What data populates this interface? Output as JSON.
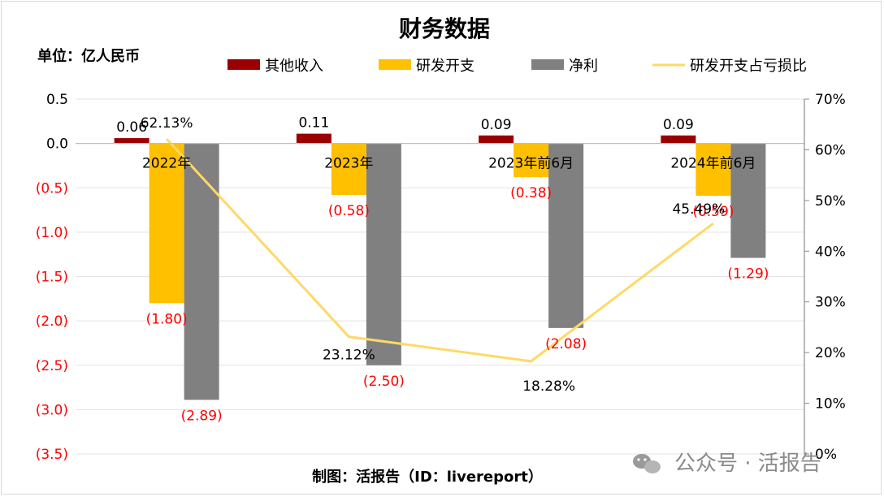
{
  "chart_data": {
    "type": "bar",
    "title": "财务数据",
    "unit_label": "单位：亿人民币",
    "categories": [
      "2022年",
      "2023年",
      "2023年前6月",
      "2024年前6月"
    ],
    "series": [
      {
        "name": "其他收入",
        "kind": "bar",
        "axis": "left",
        "color": "#9b0000",
        "values": [
          0.06,
          0.11,
          0.09,
          0.09
        ],
        "labels": [
          "0.06",
          "0.11",
          "0.09",
          "0.09"
        ]
      },
      {
        "name": "研发开支",
        "kind": "bar",
        "axis": "left",
        "color": "#ffc000",
        "values": [
          -1.8,
          -0.58,
          -0.38,
          -0.59
        ],
        "labels": [
          "(1.80)",
          "(0.58)",
          "(0.38)",
          "(0.59)"
        ]
      },
      {
        "name": "净利",
        "kind": "bar",
        "axis": "left",
        "color": "#808080",
        "values": [
          -2.89,
          -2.5,
          -2.08,
          -1.29
        ],
        "labels": [
          "(2.89)",
          "(2.50)",
          "(2.08)",
          "(1.29)"
        ]
      },
      {
        "name": "研发开支占亏损比",
        "kind": "line",
        "axis": "right",
        "color": "#ffd966",
        "values": [
          62.13,
          23.12,
          18.28,
          45.49
        ],
        "labels": [
          "62.13%",
          "23.12%",
          "18.28%",
          "45.49%"
        ]
      }
    ],
    "y_left": {
      "range": [
        -3.5,
        0.5
      ],
      "ticks": [
        "0.5",
        "0.0",
        "(0.5)",
        "(1.0)",
        "(1.5)",
        "(2.0)",
        "(2.5)",
        "(3.0)",
        "(3.5)"
      ],
      "tick_values": [
        0.5,
        0.0,
        -0.5,
        -1.0,
        -1.5,
        -2.0,
        -2.5,
        -3.0,
        -3.5
      ]
    },
    "y_right": {
      "range": [
        0,
        70
      ],
      "ticks": [
        "70%",
        "60%",
        "50%",
        "40%",
        "30%",
        "20%",
        "10%",
        "0%"
      ],
      "tick_values": [
        70,
        60,
        50,
        40,
        30,
        20,
        10,
        0
      ]
    },
    "grid": true,
    "legend_position": "top",
    "negative_color": "#ff0000"
  },
  "footer": {
    "credit": "制图：活报告（ID：livereport）",
    "watermark": "公众号 · 活报告"
  }
}
